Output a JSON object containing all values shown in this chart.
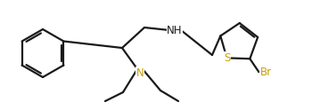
{
  "bg_color": "#ffffff",
  "line_color": "#1a1a1a",
  "line_width": 1.6,
  "label_N": "N",
  "label_NH": "NH",
  "label_S": "S",
  "label_Br": "Br",
  "label_N_color": "#c8a000",
  "label_S_color": "#c8a000",
  "label_Br_color": "#c8a000",
  "label_NH_color": "#1a1a1a",
  "figsize": [
    3.5,
    1.24
  ],
  "dpi": 100
}
